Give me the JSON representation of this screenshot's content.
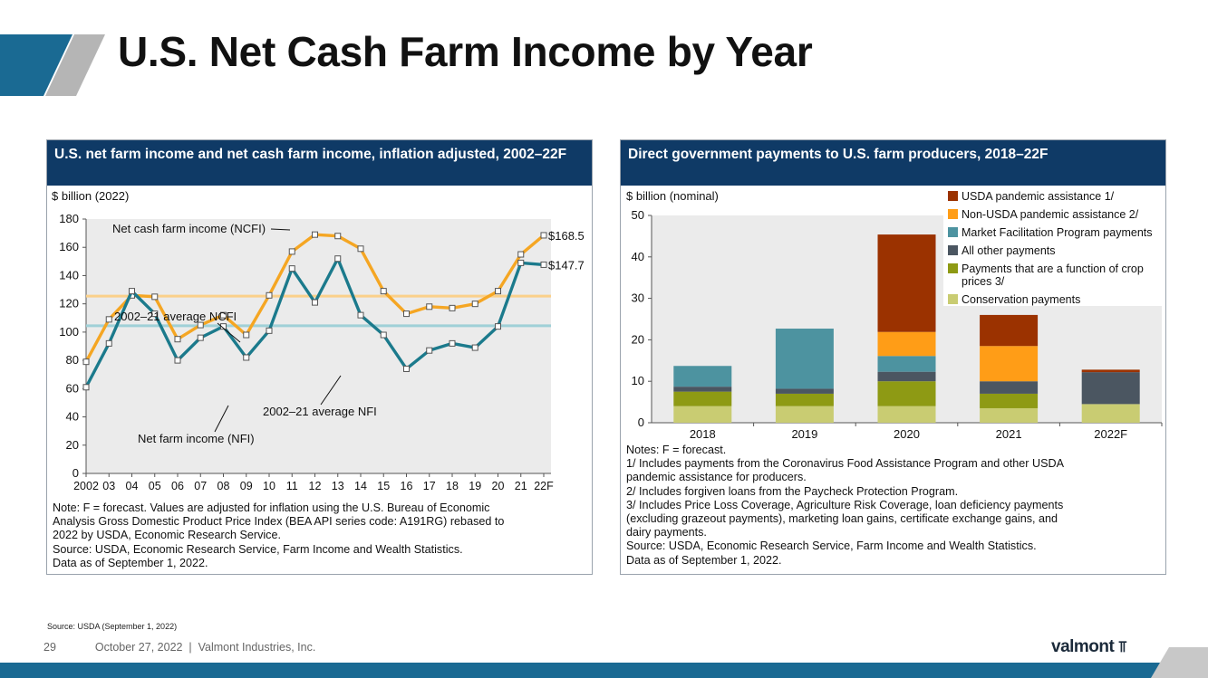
{
  "slide": {
    "title": "U.S. Net Cash Farm Income by Year",
    "source": "Source: USDA (September 1, 2022)",
    "page_number": "29",
    "footer_text": "October 27, 2022  |  Valmont Industries, Inc.",
    "logo_text": "valmont",
    "colors": {
      "brand_blue": "#1a6a93",
      "accent_gray": "#b5b5b5",
      "panel_header": "#0f3a66"
    }
  },
  "left_panel": {
    "header": "U.S. net farm income and net cash farm income, inflation adjusted, 2002–22F",
    "notes": [
      "Note: F = forecast. Values are adjusted for inflation using the U.S. Bureau of Economic",
      "Analysis Gross Domestic Product Price Index (BEA API series code: A191RG) rebased to",
      "2022 by USDA, Economic Research Service.",
      "Source: USDA, Economic Research Service, Farm Income and Wealth Statistics.",
      "Data as of September 1, 2022."
    ]
  },
  "right_panel": {
    "header": "Direct government payments to U.S. farm producers, 2018–22F",
    "notes": [
      "Notes: F = forecast.",
      "1/ Includes payments from the Coronavirus Food Assistance Program and other USDA",
      "pandemic assistance for producers.",
      "2/ Includes forgiven loans from the Paycheck Protection Program.",
      "3/ Includes Price Loss Coverage, Agriculture Risk Coverage, loan deficiency payments",
      "(excluding grazeout payments), marketing loan gains, certificate exchange gains, and",
      "dairy payments.",
      "Source: USDA, Economic Research Service, Farm Income and Wealth Statistics.",
      "Data as of September 1, 2022."
    ]
  },
  "chart_data": [
    {
      "type": "line",
      "ylabel": "$ billion (2022)",
      "ylim": [
        0,
        180
      ],
      "yticks": [
        0,
        20,
        40,
        60,
        80,
        100,
        120,
        140,
        160,
        180
      ],
      "categories": [
        "2002",
        "03",
        "04",
        "05",
        "06",
        "07",
        "08",
        "09",
        "10",
        "11",
        "12",
        "13",
        "14",
        "15",
        "16",
        "17",
        "18",
        "19",
        "20",
        "21",
        "22F"
      ],
      "grid": false,
      "series": [
        {
          "name": "Net cash farm income (NCFI)",
          "color": "#f5a623",
          "values": [
            79,
            109,
            126,
            125,
            95,
            105,
            112,
            98,
            126,
            157,
            169,
            168,
            159,
            129,
            113,
            118,
            117,
            120,
            129,
            155,
            168.5
          ]
        },
        {
          "name": "Net farm income (NFI)",
          "color": "#1b7a8c",
          "values": [
            61,
            92,
            129,
            113,
            80,
            96,
            104,
            82,
            101,
            145,
            121,
            152,
            112,
            98,
            74,
            87,
            92,
            89,
            104,
            149,
            147.7
          ]
        }
      ],
      "reference_lines": [
        {
          "label": "2002–21 average NCFI",
          "value": 125.5,
          "color": "#fad08a"
        },
        {
          "label": "2002–21 average NFI",
          "value": 104.5,
          "color": "#9fd0d7"
        }
      ],
      "end_labels": [
        "$168.5",
        "$147.7"
      ]
    },
    {
      "type": "bar",
      "stacked": true,
      "ylabel": "$ billion (nominal)",
      "ylim": [
        0,
        50
      ],
      "yticks": [
        0,
        10,
        20,
        30,
        40,
        50
      ],
      "categories": [
        "2018",
        "2019",
        "2020",
        "2021",
        "2022F"
      ],
      "legend_position": "top-right",
      "series": [
        {
          "name": "Conservation payments",
          "color": "#c9cc72",
          "values": [
            4,
            4,
            4,
            3.5,
            4.5
          ]
        },
        {
          "name": "Payments that are a function of crop prices 3/",
          "color": "#8e9a14",
          "values": [
            3.5,
            3,
            6,
            3.5,
            0
          ]
        },
        {
          "name": "All other payments",
          "color": "#4b5661",
          "values": [
            1.2,
            1.2,
            2.3,
            3,
            7.7
          ]
        },
        {
          "name": "Market Facilitation Program payments",
          "color": "#4d93a0",
          "values": [
            5,
            14.5,
            3.8,
            0,
            0
          ]
        },
        {
          "name": "Non-USDA pandemic assistance 2/",
          "color": "#ff9d17",
          "values": [
            0,
            0,
            5.8,
            8.5,
            0
          ]
        },
        {
          "name": "USDA pandemic assistance 1/",
          "color": "#9b3200",
          "values": [
            0,
            0,
            23.5,
            7.5,
            0.6
          ]
        }
      ]
    }
  ]
}
